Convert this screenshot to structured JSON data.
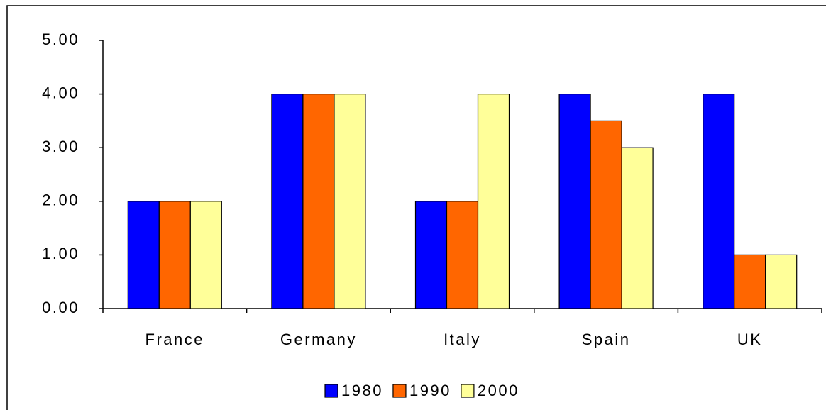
{
  "chart_data": {
    "type": "bar",
    "categories": [
      "France",
      "Germany",
      "Italy",
      "Spain",
      "UK"
    ],
    "series": [
      {
        "name": "1980",
        "color": "#0000ff",
        "values": [
          2,
          4,
          2,
          4,
          4
        ]
      },
      {
        "name": "1990",
        "color": "#ff6600",
        "values": [
          2,
          4,
          2,
          3.5,
          1
        ]
      },
      {
        "name": "2000",
        "color": "#ffff99",
        "values": [
          2,
          4,
          4,
          3,
          1
        ]
      }
    ],
    "ylim": [
      0,
      5
    ],
    "yticks": [
      {
        "value": 0,
        "label": "0.00"
      },
      {
        "value": 1,
        "label": "1.00"
      },
      {
        "value": 2,
        "label": "2.00"
      },
      {
        "value": 3,
        "label": "3.00"
      },
      {
        "value": 4,
        "label": "4.00"
      },
      {
        "value": 5,
        "label": "5.00"
      }
    ],
    "grid": false,
    "legend": "bottom"
  }
}
